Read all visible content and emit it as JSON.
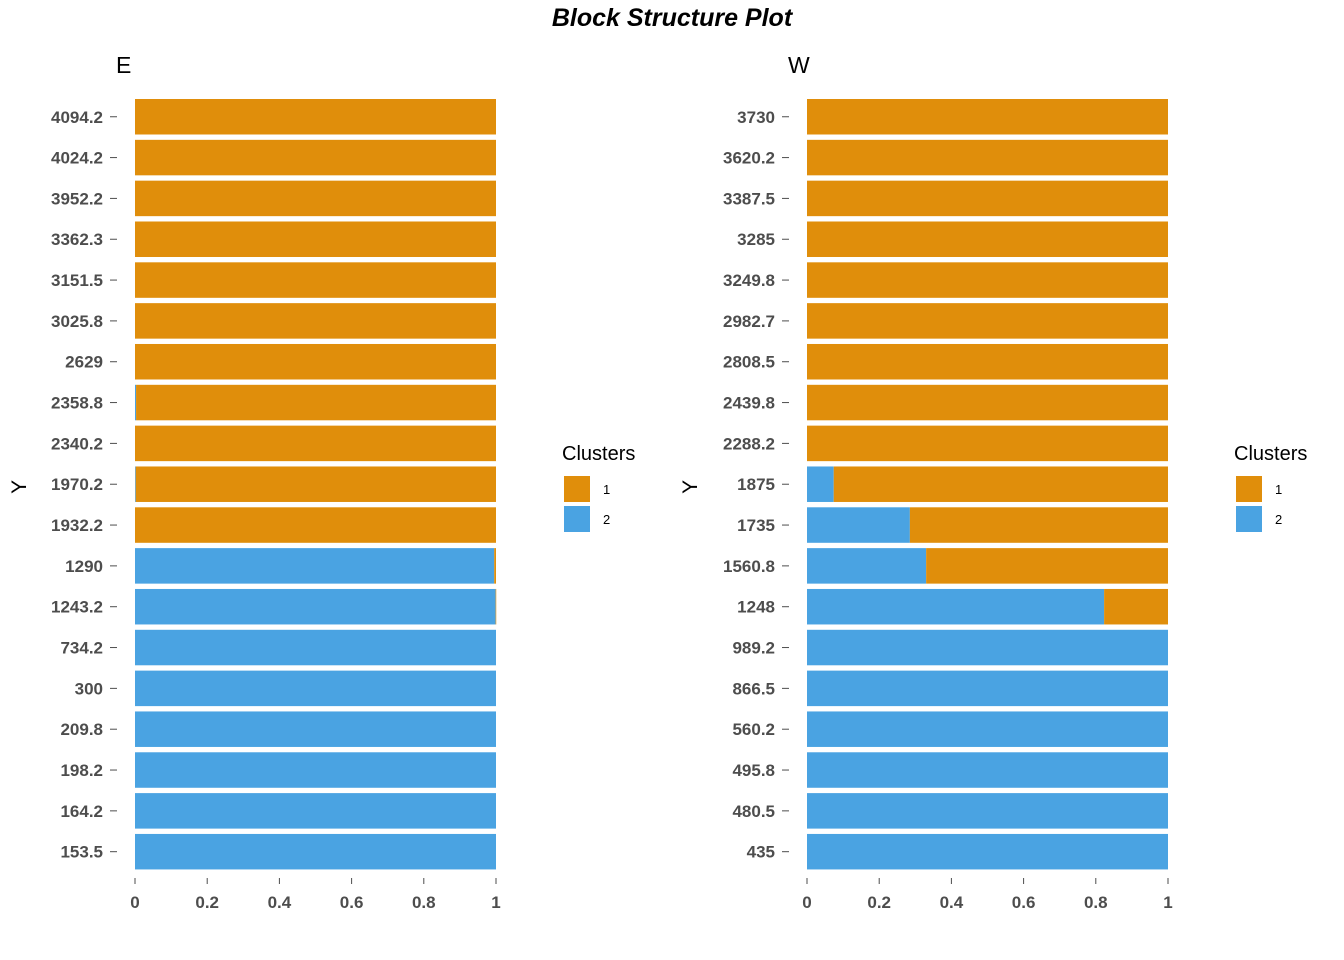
{
  "title": "Block Structure Plot",
  "colors": {
    "cluster_1": "#E08E0B",
    "cluster_2": "#4AA3E2"
  },
  "chart_data": [
    {
      "type": "bar",
      "orientation": "horizontal",
      "stacked": true,
      "title": "E",
      "xlabel": "",
      "ylabel": "Y",
      "xlim": [
        0,
        1
      ],
      "xticks": [
        "0",
        "0.2",
        "0.4",
        "0.6",
        "0.8",
        "1"
      ],
      "legend": {
        "title": "Clusters",
        "entries": [
          "1",
          "2"
        ],
        "position": "right"
      },
      "categories": [
        "4094.2",
        "4024.2",
        "3952.2",
        "3362.3",
        "3151.5",
        "3025.8",
        "2629",
        "2358.8",
        "2340.2",
        "1970.2",
        "1932.2",
        "1290",
        "1243.2",
        "734.2",
        "300",
        "209.8",
        "198.2",
        "164.2",
        "153.5"
      ],
      "series": [
        {
          "name": "2",
          "values": [
            0,
            0,
            0,
            0,
            0,
            0,
            0,
            0.003,
            0,
            0.002,
            0,
            0.995,
            0.999,
            1,
            1,
            1,
            1,
            1,
            1
          ]
        },
        {
          "name": "1",
          "values": [
            1,
            1,
            1,
            1,
            1,
            1,
            1,
            0.997,
            1,
            0.998,
            1,
            0.005,
            0.001,
            0,
            0,
            0,
            0,
            0,
            0
          ]
        }
      ]
    },
    {
      "type": "bar",
      "orientation": "horizontal",
      "stacked": true,
      "title": "W",
      "xlabel": "",
      "ylabel": "Y",
      "xlim": [
        0,
        1
      ],
      "xticks": [
        "0",
        "0.2",
        "0.4",
        "0.6",
        "0.8",
        "1"
      ],
      "legend": {
        "title": "Clusters",
        "entries": [
          "1",
          "2"
        ],
        "position": "right"
      },
      "categories": [
        "3730",
        "3620.2",
        "3387.5",
        "3285",
        "3249.8",
        "2982.7",
        "2808.5",
        "2439.8",
        "2288.2",
        "1875",
        "1735",
        "1560.8",
        "1248",
        "989.2",
        "866.5",
        "560.2",
        "495.8",
        "480.5",
        "435"
      ],
      "series": [
        {
          "name": "2",
          "values": [
            0,
            0,
            0,
            0,
            0,
            0,
            0,
            0,
            0,
            0.074,
            0.285,
            0.33,
            0.823,
            1,
            1,
            1,
            1,
            1,
            1
          ]
        },
        {
          "name": "1",
          "values": [
            1,
            1,
            1,
            1,
            1,
            1,
            1,
            1,
            1,
            0.926,
            0.715,
            0.67,
            0.177,
            0,
            0,
            0,
            0,
            0,
            0
          ]
        }
      ]
    }
  ]
}
